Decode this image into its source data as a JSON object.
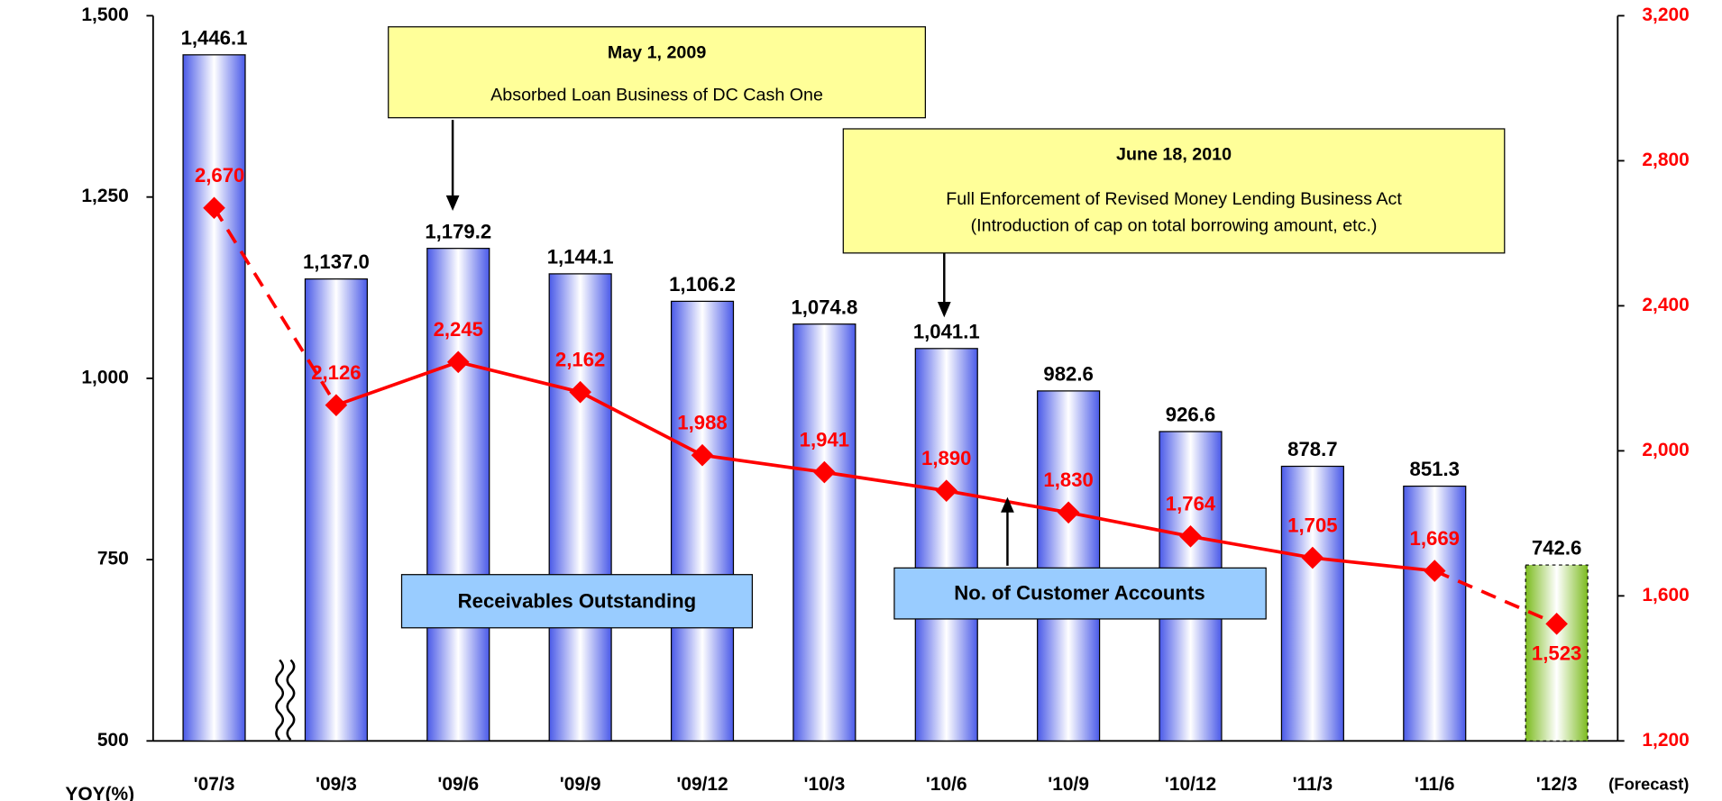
{
  "chart_data": {
    "type": "bar_line",
    "categories": [
      "'07/3",
      "'09/3",
      "'09/6",
      "'09/9",
      "'09/12",
      "'10/3",
      "'10/6",
      "'10/9",
      "'10/12",
      "'11/3",
      "'11/6",
      "'12/3"
    ],
    "category_note": "(Forecast)",
    "x_caption": "YOY(%)",
    "series": [
      {
        "name": "Receivables Outstanding",
        "type": "bar",
        "colors": [
          "#4a5ae8",
          "#4a5ae8",
          "#4a5ae8",
          "#4a5ae8",
          "#4a5ae8",
          "#4a5ae8",
          "#4a5ae8",
          "#4a5ae8",
          "#4a5ae8",
          "#4a5ae8",
          "#4a5ae8",
          "#7cbb1f"
        ],
        "values": [
          1446.1,
          1137.0,
          1179.2,
          1144.1,
          1106.2,
          1074.8,
          1041.1,
          982.6,
          926.6,
          878.7,
          851.3,
          742.6
        ],
        "value_labels": [
          "1,446.1",
          "1,137.0",
          "1,179.2",
          "1,144.1",
          "1,106.2",
          "1,074.8",
          "1,041.1",
          "982.6",
          "926.6",
          "878.7",
          "851.3",
          "742.6"
        ]
      },
      {
        "name": "No. of Customer Accounts",
        "type": "line",
        "axis": "y2",
        "color": "#ff0000",
        "dashed_segments": [
          0,
          10
        ],
        "values": [
          2670,
          2126,
          2245,
          2162,
          1988,
          1941,
          1890,
          1830,
          1764,
          1705,
          1669,
          1523
        ],
        "value_labels": [
          "2,670",
          "2,126",
          "2,245",
          "2,162",
          "1,988",
          "1,941",
          "1,890",
          "1,830",
          "1,764",
          "1,705",
          "1,669",
          "1,523"
        ]
      }
    ],
    "ylim": [
      500,
      1500
    ],
    "yticks": [
      500,
      750,
      {
        "value": 1000,
        "label": "1,000"
      },
      {
        "value": 1250,
        "label": "1,250"
      },
      {
        "value": 1500,
        "label": "1,500"
      }
    ],
    "y2lim": [
      1200,
      3200
    ],
    "y2ticks": [
      {
        "value": 1200,
        "label": "1,200"
      },
      {
        "value": 1600,
        "label": "1,600"
      },
      {
        "value": 2000,
        "label": "2,000"
      },
      {
        "value": 2400,
        "label": "2,400"
      },
      {
        "value": 2800,
        "label": "2,800"
      },
      {
        "value": 3200,
        "label": "3,200"
      }
    ],
    "annotations": [
      {
        "date": "May 1, 2009",
        "lines": [
          "Absorbed Loan Business of DC Cash One"
        ]
      },
      {
        "date": "June 18, 2010",
        "lines": [
          "Full Enforcement of Revised Money Lending Business Act",
          "(Introduction of cap on total borrowing amount, etc.)"
        ]
      }
    ]
  }
}
